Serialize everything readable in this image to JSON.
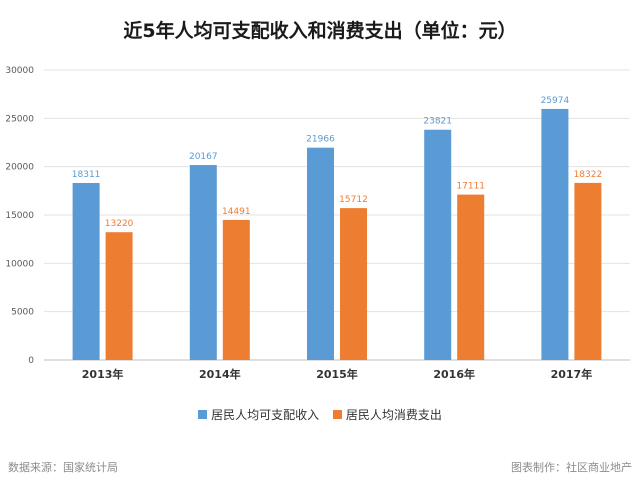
{
  "chart_data": {
    "type": "bar",
    "title": "近5年人均可支配收入和消费支出（单位：元）",
    "categories": [
      "2013年",
      "2014年",
      "2015年",
      "2016年",
      "2017年"
    ],
    "series": [
      {
        "name": "居民人均可支配收入",
        "values": [
          18311,
          20167,
          21966,
          23821,
          25974
        ],
        "color": "#5b9bd5",
        "label_color": "#5b9bd5"
      },
      {
        "name": "居民人均消费支出",
        "values": [
          13220,
          14491,
          15712,
          17111,
          18322
        ],
        "color": "#ed7d31",
        "label_color": "#ed7d31"
      }
    ],
    "ylim": [
      0,
      30000
    ],
    "yticks": [
      0,
      5000,
      10000,
      15000,
      20000,
      25000,
      30000
    ],
    "grid": true,
    "legend": "bottom"
  },
  "footer": {
    "source": "数据来源：国家统计局",
    "credit": "图表制作：社区商业地产"
  }
}
